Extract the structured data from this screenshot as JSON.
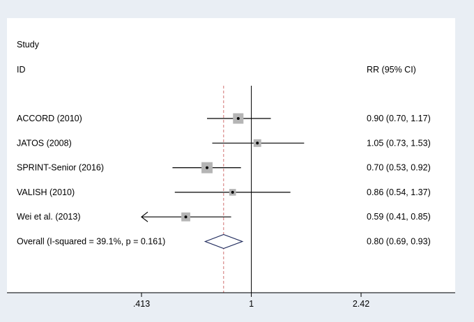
{
  "chart_data": {
    "type": "forest",
    "header": {
      "study_col_line1": "Study",
      "study_col_line2": "ID",
      "effect_col": "RR (95% CI)"
    },
    "x_scale": "log",
    "xlim": [
      0.413,
      2.42
    ],
    "x_ticks": [
      {
        "value": 0.413,
        "label": ".413"
      },
      {
        "value": 1,
        "label": "1"
      },
      {
        "value": 2.42,
        "label": "2.42"
      }
    ],
    "null_line": 1,
    "overall_line": 0.8,
    "studies": [
      {
        "label": "ACCORD (2010)",
        "rr": 0.9,
        "lo": 0.7,
        "hi": 1.17,
        "ci_text": "0.90 (0.70, 1.17)",
        "weight": 1.0,
        "arrow_left": false
      },
      {
        "label": "JATOS (2008)",
        "rr": 1.05,
        "lo": 0.73,
        "hi": 1.53,
        "ci_text": "1.05 (0.73, 1.53)",
        "weight": 0.55,
        "arrow_left": false
      },
      {
        "label": "SPRINT-Senior (2016)",
        "rr": 0.7,
        "lo": 0.53,
        "hi": 0.92,
        "ci_text": "0.70 (0.53, 0.92)",
        "weight": 1.1,
        "arrow_left": false
      },
      {
        "label": "VALISH (2010)",
        "rr": 0.86,
        "lo": 0.54,
        "hi": 1.37,
        "ci_text": "0.86 (0.54, 1.37)",
        "weight": 0.4,
        "arrow_left": false
      },
      {
        "label": "Wei et al. (2013)",
        "rr": 0.59,
        "lo": 0.41,
        "hi": 0.85,
        "ci_text": "0.59 (0.41, 0.85)",
        "weight": 0.75,
        "arrow_left": true
      }
    ],
    "overall": {
      "label": "Overall  (I-squared = 39.1%, p = 0.161)",
      "rr": 0.8,
      "lo": 0.69,
      "hi": 0.93,
      "ci_text": "0.80 (0.69, 0.93)"
    },
    "colors": {
      "weight_box": "#b5b5b5",
      "diamond": "#1f2a5c",
      "overall_dash": "#d07070",
      "line": "#000000",
      "frame_bg": "#e9eef4"
    }
  }
}
